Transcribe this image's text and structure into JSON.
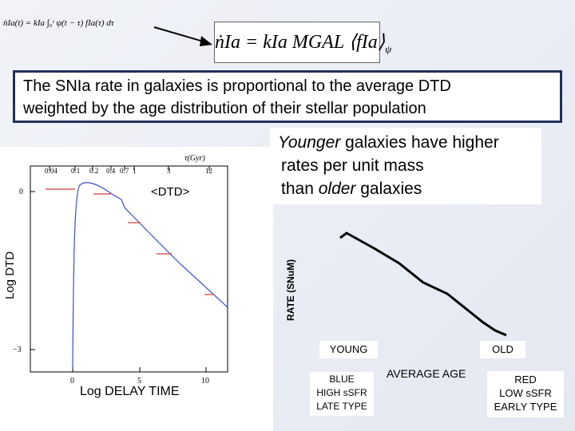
{
  "equations": {
    "integral_formula": "ṅIa(t) = kIa ∫₀ᵗ ψ(t − τ) fIa(τ) dτ",
    "rate_formula_main": "ṅIa = kIa MGAL ⟨fIa⟩",
    "rate_formula_subscript": "ψ"
  },
  "banner": {
    "line1": "The SNIa rate in galaxies is proportional to the average DTD",
    "line2": "weighted by the age distribution of their stellar population"
  },
  "younger_note": {
    "word_italic": "Younger",
    "line1_rest": " galaxies have higher",
    "line2": "rates per unit mass",
    "line3_start": "than ",
    "word_italic2": "older",
    "line3_end": " galaxies"
  },
  "dtd_plot": {
    "ylabel": "Log DTD",
    "xlabel": "Log DELAY TIME",
    "curve_label": "<DTD>",
    "top_axis_label": "τ(Gyr)",
    "top_ticks": [
      "0.04",
      "0.1",
      "0.2",
      "0.4",
      "0.7",
      "1",
      "3",
      "12"
    ],
    "bottom_ticks": [
      "0",
      "5",
      "10"
    ],
    "left_ticks": [
      "0",
      "−3"
    ]
  },
  "rate_plot": {
    "ylabel": "RATE (SNuM)",
    "young_label": "YOUNG",
    "old_label": "OLD",
    "xlabel": "AVERAGE AGE",
    "young_desc": [
      "BLUE",
      "HIGH sSFR",
      "LATE TYPE"
    ],
    "old_desc": [
      "RED",
      "LOW sSFR",
      "EARLY TYPE"
    ]
  },
  "colors": {
    "banner_border": "#22305a",
    "curve_blue": "#3a4fc9",
    "marker_red": "#d43a3a",
    "young_box": "#3a56b8",
    "old_box": "#c03a30"
  }
}
